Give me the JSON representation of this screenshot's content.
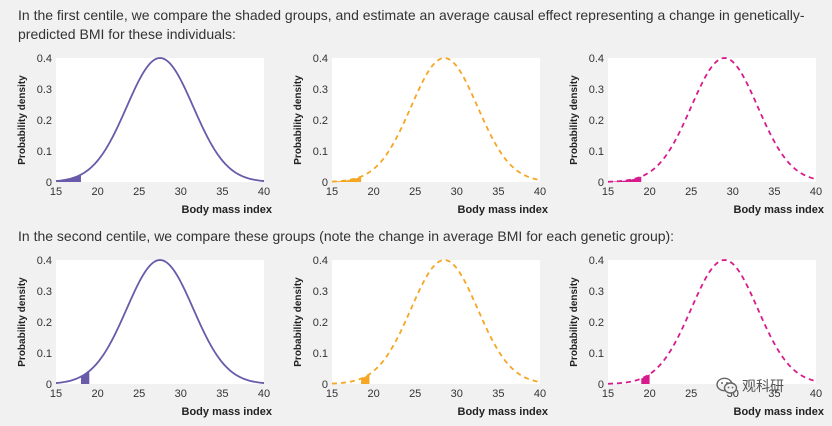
{
  "captions": {
    "first": "In the first centile, we compare the shaded groups, and estimate an average causal effect representing a change in genetically-predicted BMI for these individuals:",
    "second": "In the second centile, we compare these groups (note the change in average BMI for each genetic group):"
  },
  "watermark": {
    "text": "观科研",
    "icon": "wechat-icon"
  },
  "chart_data": [
    {
      "type": "area",
      "row": 1,
      "col": 1,
      "mean": 27.5,
      "sd": 4,
      "shade": [
        15,
        18
      ],
      "color": "#6a5aaa",
      "line_style": "solid",
      "xlabel": "Body mass index",
      "ylabel": "Probability density",
      "xlim": [
        15,
        40
      ],
      "ylim": [
        0,
        0.4
      ],
      "xticks": [
        15,
        20,
        25,
        30,
        35,
        40
      ],
      "yticks": [
        0,
        0.1,
        0.2,
        0.3,
        0.4
      ],
      "xtick_labels": [
        "15",
        "20",
        "25",
        "30",
        "35",
        "40"
      ],
      "ytick_labels": [
        "0",
        "0.1",
        "0.2",
        "0.3",
        "0.4"
      ]
    },
    {
      "type": "area",
      "row": 1,
      "col": 2,
      "mean": 28.5,
      "sd": 4,
      "shade": [
        15,
        18.5
      ],
      "color": "#f5a623",
      "line_style": "dashed",
      "xlabel": "Body mass index",
      "ylabel": "Probability density",
      "xlim": [
        15,
        40
      ],
      "ylim": [
        0,
        0.4
      ],
      "xticks": [
        15,
        20,
        25,
        30,
        35,
        40
      ],
      "yticks": [
        0,
        0.1,
        0.2,
        0.3,
        0.4
      ],
      "xtick_labels": [
        "15",
        "20",
        "25",
        "30",
        "35",
        "40"
      ],
      "ytick_labels": [
        "0",
        "0.1",
        "0.2",
        "0.3",
        "0.4"
      ]
    },
    {
      "type": "area",
      "row": 1,
      "col": 3,
      "mean": 29,
      "sd": 4,
      "shade": [
        15,
        19
      ],
      "color": "#d81b8c",
      "line_style": "dashed",
      "xlabel": "Body mass index",
      "ylabel": "Probability density",
      "xlim": [
        15,
        40
      ],
      "ylim": [
        0,
        0.4
      ],
      "xticks": [
        15,
        20,
        25,
        30,
        35,
        40
      ],
      "yticks": [
        0,
        0.1,
        0.2,
        0.3,
        0.4
      ],
      "xtick_labels": [
        "15",
        "20",
        "25",
        "30",
        "35",
        "40"
      ],
      "ytick_labels": [
        "0",
        "0.1",
        "0.2",
        "0.3",
        "0.4"
      ]
    },
    {
      "type": "area",
      "row": 2,
      "col": 1,
      "mean": 27.5,
      "sd": 4,
      "shade": [
        18,
        19
      ],
      "color": "#6a5aaa",
      "line_style": "solid",
      "xlabel": "Body mass index",
      "ylabel": "Probability density",
      "xlim": [
        15,
        40
      ],
      "ylim": [
        0,
        0.4
      ],
      "xticks": [
        15,
        20,
        25,
        30,
        35,
        40
      ],
      "yticks": [
        0,
        0.1,
        0.2,
        0.3,
        0.4
      ],
      "xtick_labels": [
        "15",
        "20",
        "25",
        "30",
        "35",
        "40"
      ],
      "ytick_labels": [
        "0",
        "0.1",
        "0.2",
        "0.3",
        "0.4"
      ]
    },
    {
      "type": "area",
      "row": 2,
      "col": 2,
      "mean": 28.5,
      "sd": 4,
      "shade": [
        18.5,
        19.5
      ],
      "color": "#f5a623",
      "line_style": "dashed",
      "xlabel": "Body mass index",
      "ylabel": "Probability density",
      "xlim": [
        15,
        40
      ],
      "ylim": [
        0,
        0.4
      ],
      "xticks": [
        15,
        20,
        25,
        30,
        35,
        40
      ],
      "yticks": [
        0,
        0.1,
        0.2,
        0.3,
        0.4
      ],
      "xtick_labels": [
        "15",
        "20",
        "25",
        "30",
        "35",
        "40"
      ],
      "ytick_labels": [
        "0",
        "0.1",
        "0.2",
        "0.3",
        "0.4"
      ]
    },
    {
      "type": "area",
      "row": 2,
      "col": 3,
      "mean": 29,
      "sd": 4,
      "shade": [
        19,
        20
      ],
      "color": "#d81b8c",
      "line_style": "dashed",
      "xlabel": "Body mass index",
      "ylabel": "Probability density",
      "xlim": [
        15,
        40
      ],
      "ylim": [
        0,
        0.4
      ],
      "xticks": [
        15,
        20,
        25,
        30,
        35,
        40
      ],
      "yticks": [
        0,
        0.1,
        0.2,
        0.3,
        0.4
      ],
      "xtick_labels": [
        "15",
        "20",
        "25",
        "30",
        "35",
        "40"
      ],
      "ytick_labels": [
        "0",
        "0.1",
        "0.2",
        "0.3",
        "0.4"
      ]
    }
  ]
}
